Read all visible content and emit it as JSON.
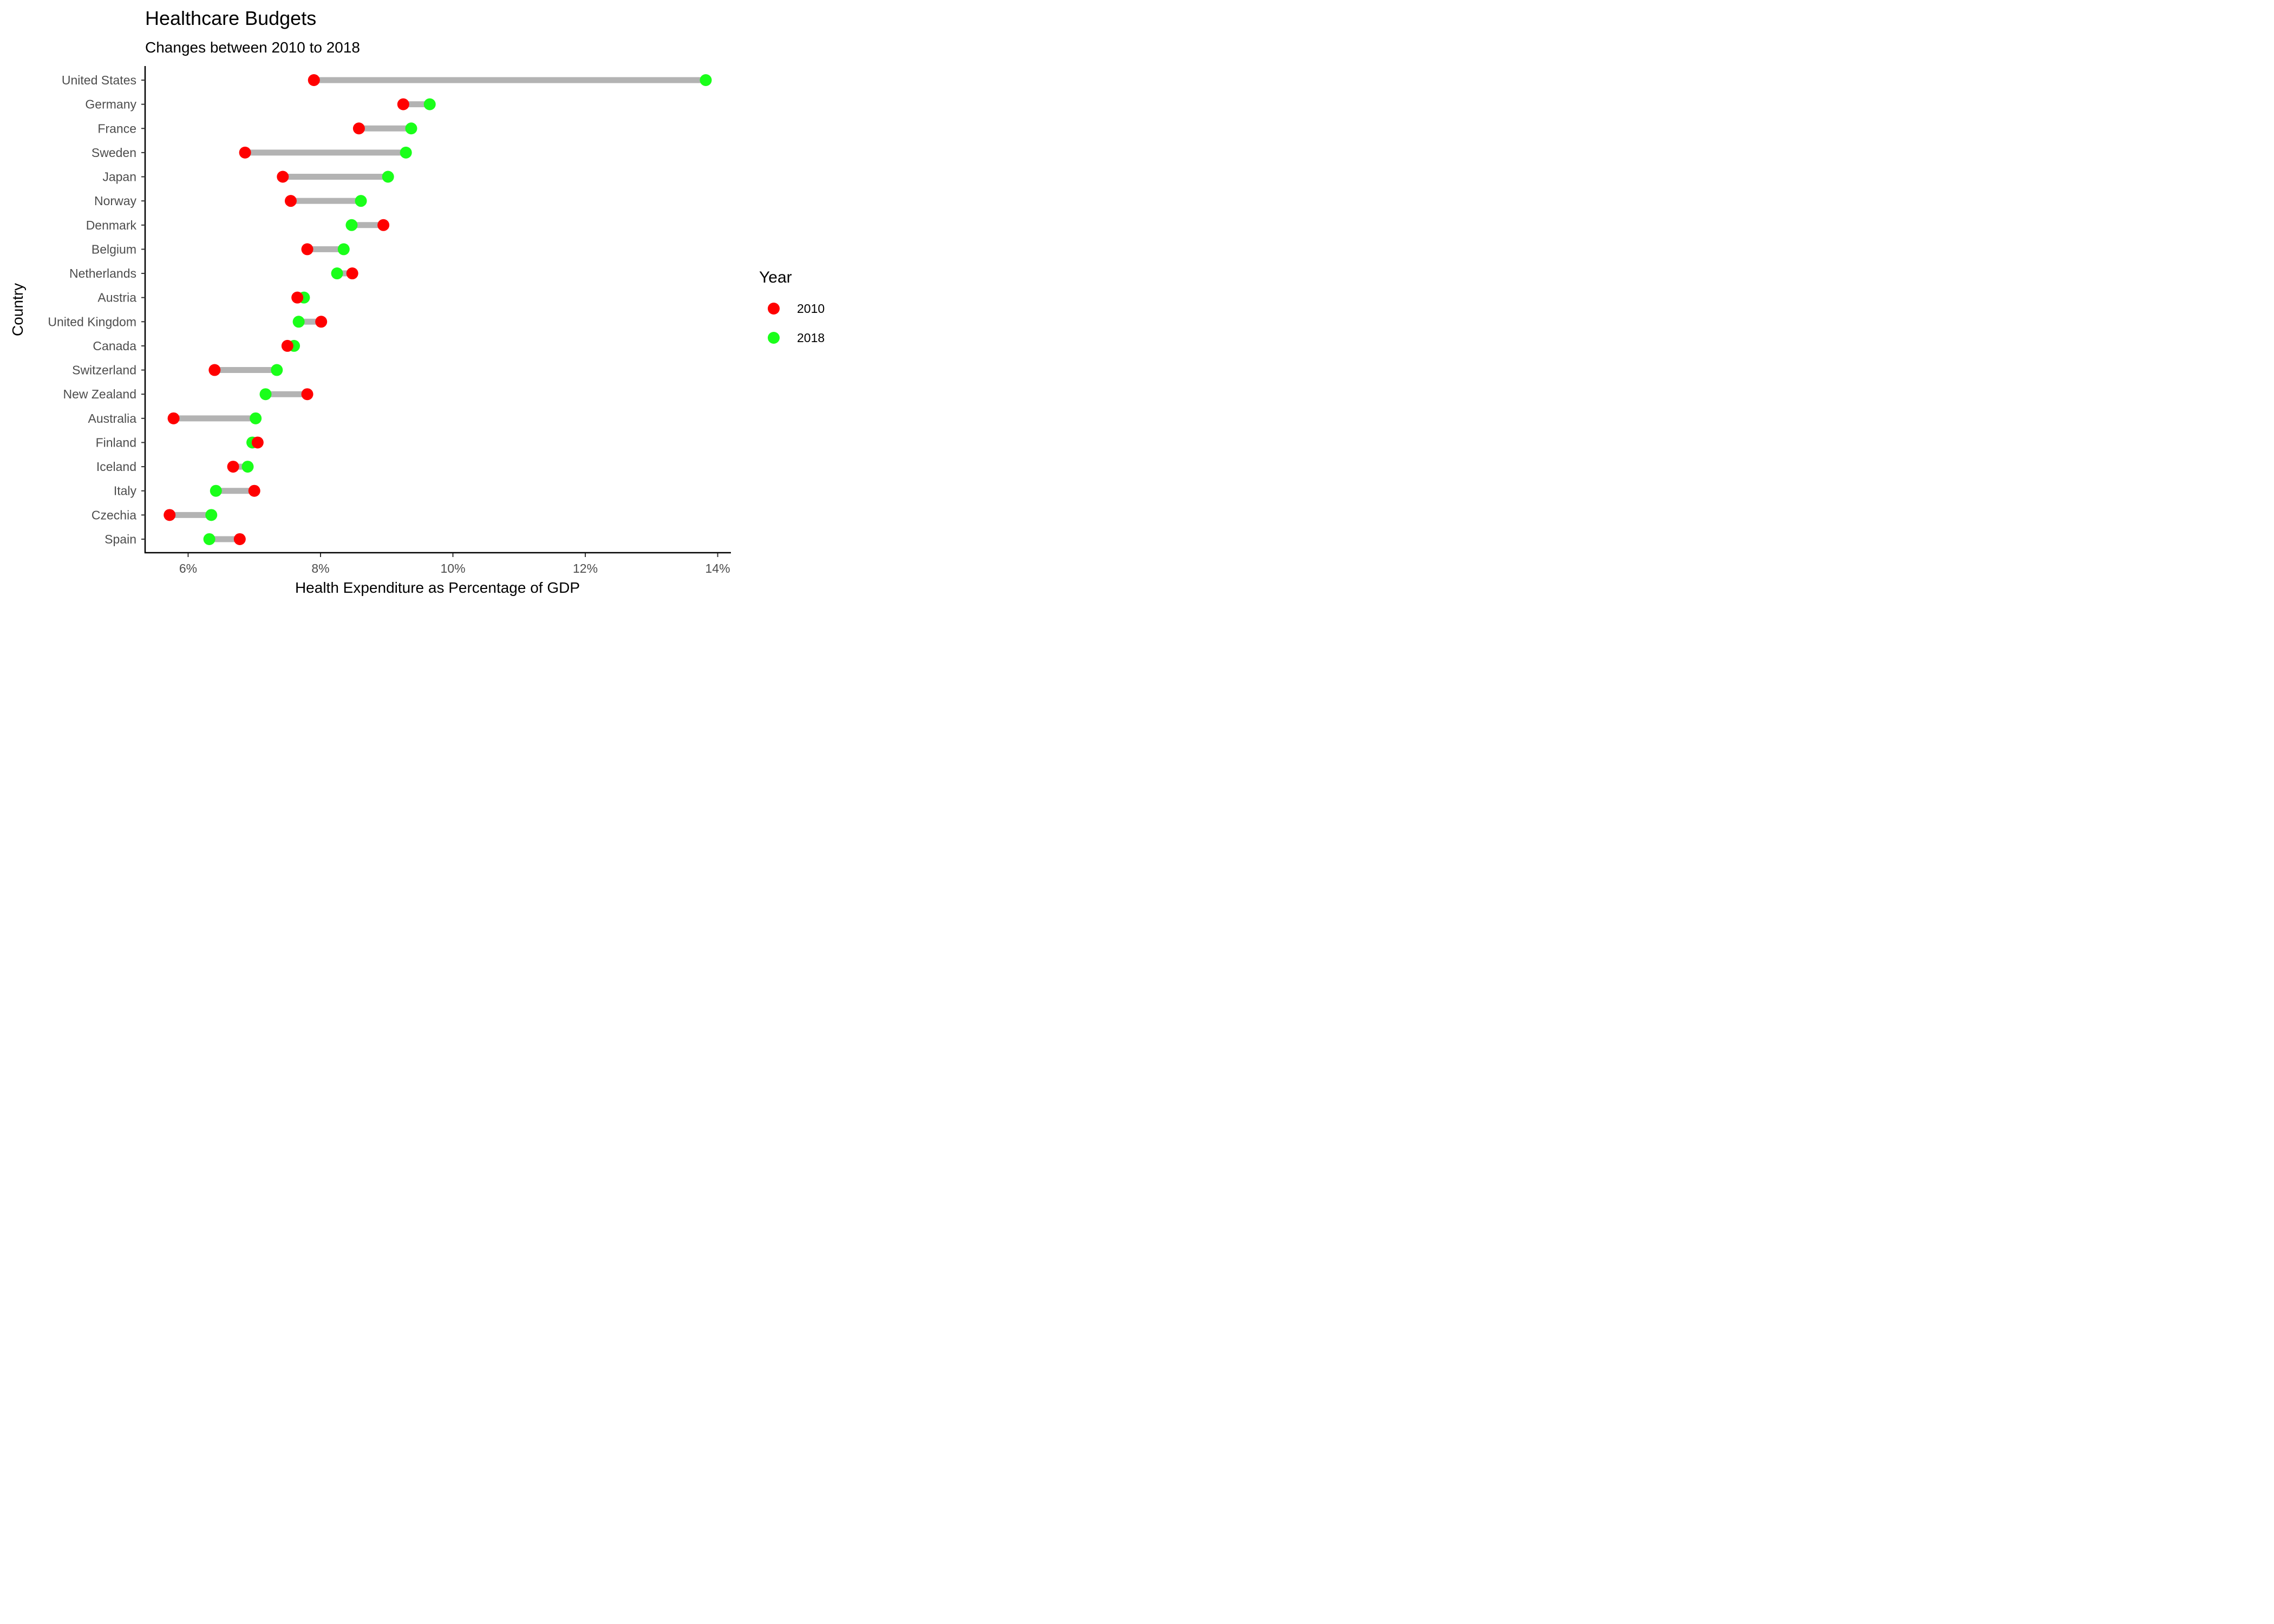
{
  "chart_data": {
    "type": "dumbbell",
    "title": "Healthcare Budgets",
    "subtitle": "Changes between 2010 to 2018",
    "xlabel": "Health Expenditure as Percentage of GDP",
    "ylabel": "Country",
    "x_ticks": [
      6,
      8,
      10,
      12,
      14
    ],
    "x_tick_labels": [
      "6%",
      "8%",
      "10%",
      "12%",
      "14%"
    ],
    "xlim": [
      5.35,
      14.2
    ],
    "grid": false,
    "legend": {
      "title": "Year",
      "position": "right",
      "entries": [
        {
          "label": "2010",
          "color": "#ff0000"
        },
        {
          "label": "2018",
          "color": "#1aff1a"
        }
      ]
    },
    "segment_color": "#b3b3b3",
    "categories": [
      "United States",
      "Germany",
      "France",
      "Sweden",
      "Japan",
      "Norway",
      "Denmark",
      "Belgium",
      "Netherlands",
      "Austria",
      "United Kingdom",
      "Canada",
      "Switzerland",
      "New Zealand",
      "Australia",
      "Finland",
      "Iceland",
      "Italy",
      "Czechia",
      "Spain"
    ],
    "series": [
      {
        "name": "2010",
        "color": "#ff0000",
        "values": [
          7.9,
          9.25,
          8.58,
          6.86,
          7.43,
          7.55,
          8.95,
          7.8,
          8.48,
          7.65,
          8.01,
          7.5,
          6.4,
          7.8,
          5.78,
          7.05,
          6.68,
          7.0,
          5.72,
          6.78
        ]
      },
      {
        "name": "2018",
        "color": "#1aff1a",
        "values": [
          13.82,
          9.65,
          9.37,
          9.29,
          9.02,
          8.61,
          8.47,
          8.35,
          8.25,
          7.75,
          7.67,
          7.6,
          7.34,
          7.17,
          7.02,
          6.97,
          6.9,
          6.42,
          6.35,
          6.32
        ]
      }
    ]
  }
}
